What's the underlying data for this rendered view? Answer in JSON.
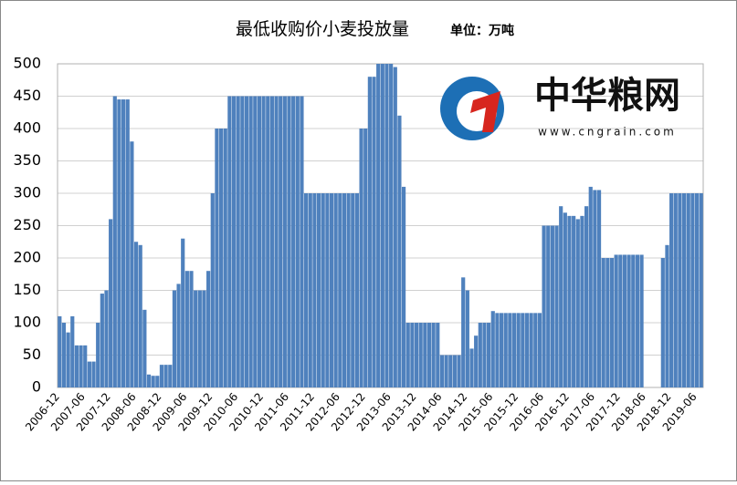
{
  "chart_data": {
    "type": "bar",
    "title": "最低收购价小麦投放量",
    "subtitle": "单位：万吨",
    "categories": [
      "2006-12",
      null,
      null,
      null,
      null,
      null,
      "2007-06",
      null,
      null,
      null,
      null,
      null,
      "2007-12",
      null,
      null,
      null,
      null,
      null,
      "2008-06",
      null,
      null,
      null,
      null,
      null,
      "2008-12",
      null,
      null,
      null,
      null,
      null,
      "2009-06",
      null,
      null,
      null,
      null,
      null,
      "2009-12",
      null,
      null,
      null,
      null,
      null,
      "2010-06",
      null,
      null,
      null,
      null,
      null,
      "2010-12",
      null,
      null,
      null,
      null,
      null,
      "2011-06",
      null,
      null,
      null,
      null,
      null,
      "2011-12",
      null,
      null,
      null,
      null,
      null,
      "2012-06",
      null,
      null,
      null,
      null,
      null,
      "2012-12",
      null,
      null,
      null,
      null,
      null,
      "2013-06",
      null,
      null,
      null,
      null,
      null,
      "2013-12",
      null,
      null,
      null,
      null,
      null,
      "2014-06",
      null,
      null,
      null,
      null,
      null,
      "2014-12",
      null,
      null,
      null,
      null,
      null,
      "2015-06",
      null,
      null,
      null,
      null,
      null,
      "2015-12",
      null,
      null,
      null,
      null,
      null,
      "2016-06",
      null,
      null,
      null,
      null,
      null,
      "2016-12",
      null,
      null,
      null,
      null,
      null,
      "2017-06",
      null,
      null,
      null,
      null,
      null,
      "2017-12",
      null,
      null,
      null,
      null,
      null,
      "2018-06",
      null,
      null,
      null,
      null,
      null,
      "2018-12",
      null,
      null,
      null,
      null,
      null,
      "2019-06",
      null
    ],
    "values": [
      110,
      100,
      85,
      110,
      65,
      65,
      65,
      40,
      40,
      100,
      145,
      150,
      260,
      450,
      445,
      445,
      445,
      380,
      225,
      220,
      120,
      20,
      18,
      18,
      35,
      35,
      35,
      150,
      160,
      230,
      180,
      180,
      150,
      150,
      150,
      180,
      300,
      400,
      400,
      400,
      450,
      450,
      450,
      450,
      450,
      450,
      450,
      450,
      450,
      450,
      450,
      450,
      450,
      450,
      450,
      450,
      450,
      450,
      300,
      300,
      300,
      300,
      300,
      300,
      300,
      300,
      300,
      300,
      300,
      300,
      300,
      400,
      400,
      480,
      480,
      500,
      500,
      500,
      500,
      495,
      420,
      310,
      100,
      100,
      100,
      100,
      100,
      100,
      100,
      100,
      50,
      50,
      50,
      50,
      50,
      170,
      150,
      60,
      80,
      100,
      100,
      100,
      118,
      115,
      115,
      115,
      115,
      115,
      115,
      115,
      115,
      115,
      115,
      115,
      250,
      250,
      250,
      250,
      280,
      270,
      265,
      265,
      260,
      265,
      280,
      310,
      305,
      305,
      200,
      200,
      200,
      205,
      205,
      205,
      205,
      205,
      205,
      205,
      0,
      0,
      0,
      0,
      200,
      220,
      300,
      300,
      300,
      300,
      300,
      300,
      300,
      300
    ],
    "color": "#4f81bd",
    "ylim": [
      0,
      500
    ],
    "yticks": [
      0,
      50,
      100,
      150,
      200,
      250,
      300,
      350,
      400,
      450,
      500
    ],
    "grid": true
  },
  "logo": {
    "name": "中华粮网",
    "url": "www.cngrain.com"
  }
}
